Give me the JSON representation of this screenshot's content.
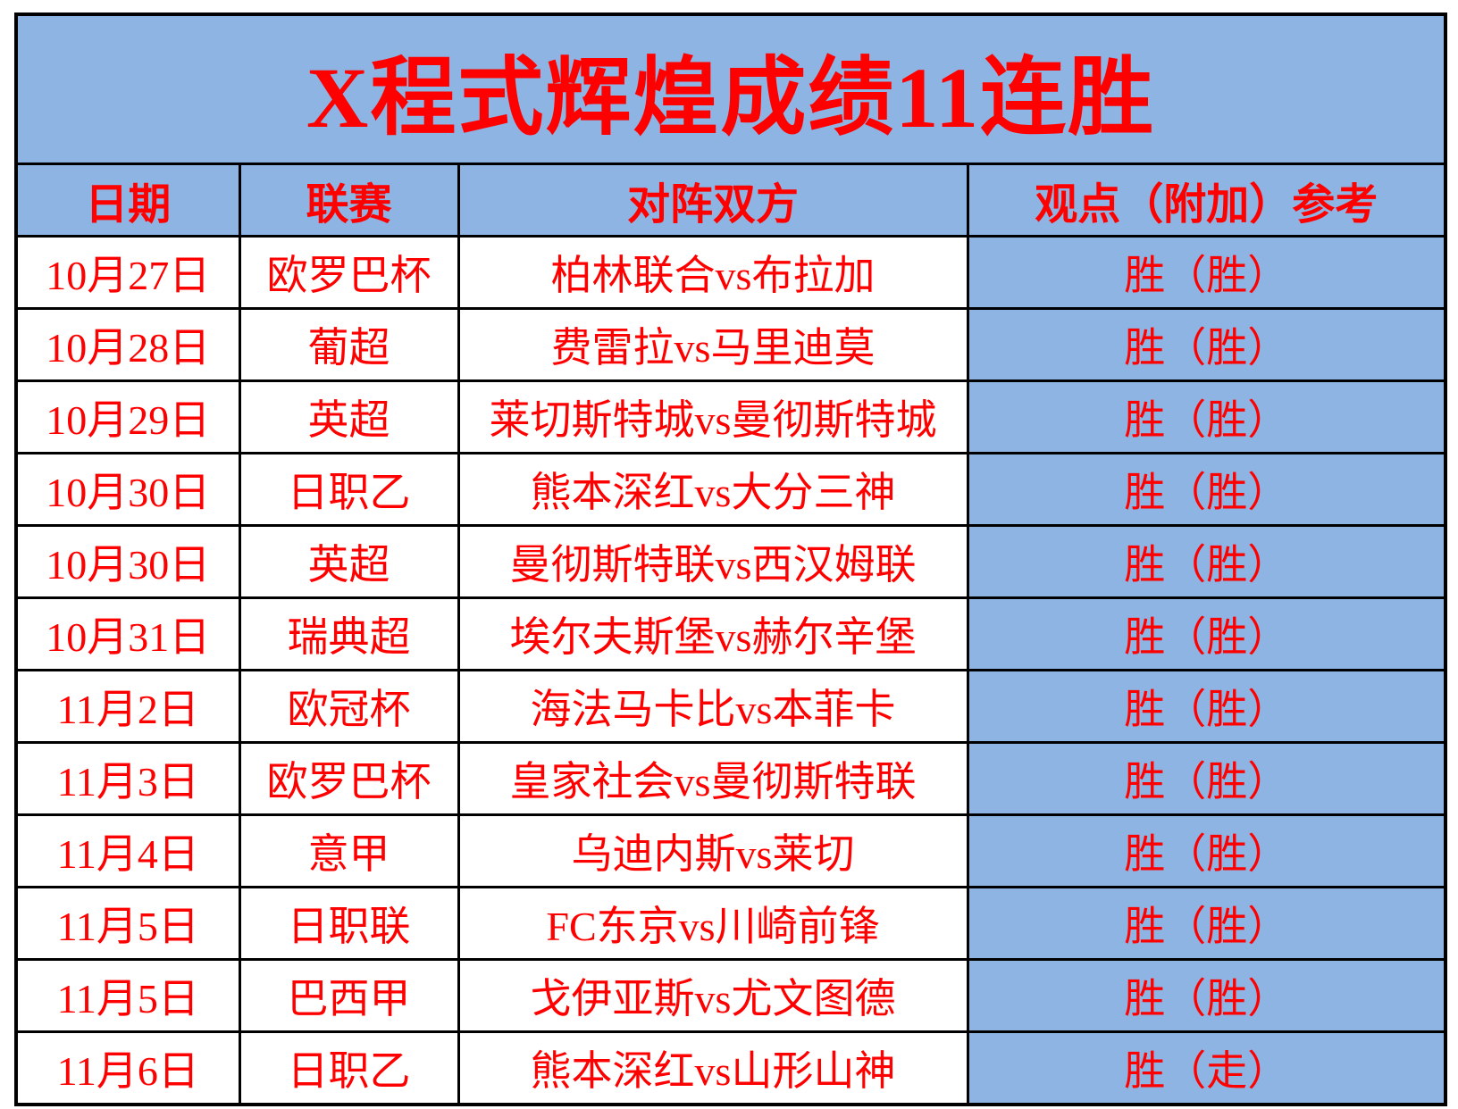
{
  "banner": {
    "title": "X程式辉煌成绩11连胜"
  },
  "table": {
    "headers": {
      "date": "日期",
      "league": "联赛",
      "matchup": "对阵双方",
      "opinion": "观点（附加）参考"
    },
    "rows": [
      {
        "date": "10月27日",
        "league": "欧罗巴杯",
        "match": "柏林联合vs布拉加",
        "result": "胜（胜）"
      },
      {
        "date": "10月28日",
        "league": "葡超",
        "match": "费雷拉vs马里迪莫",
        "result": "胜（胜）"
      },
      {
        "date": "10月29日",
        "league": "英超",
        "match": "莱切斯特城vs曼彻斯特城",
        "result": "胜（胜）"
      },
      {
        "date": "10月30日",
        "league": "日职乙",
        "match": "熊本深红vs大分三神",
        "result": "胜（胜）"
      },
      {
        "date": "10月30日",
        "league": "英超",
        "match": "曼彻斯特联vs西汉姆联",
        "result": "胜（胜）"
      },
      {
        "date": "10月31日",
        "league": "瑞典超",
        "match": "埃尔夫斯堡vs赫尔辛堡",
        "result": "胜（胜）"
      },
      {
        "date": "11月2日",
        "league": "欧冠杯",
        "match": "海法马卡比vs本菲卡",
        "result": "胜（胜）"
      },
      {
        "date": "11月3日",
        "league": "欧罗巴杯",
        "match": "皇家社会vs曼彻斯特联",
        "result": "胜（胜）"
      },
      {
        "date": "11月4日",
        "league": "意甲",
        "match": "乌迪内斯vs莱切",
        "result": "胜（胜）"
      },
      {
        "date": "11月5日",
        "league": "日职联",
        "match": "FC东京vs川崎前锋",
        "result": "胜（胜）"
      },
      {
        "date": "11月5日",
        "league": "巴西甲",
        "match": "戈伊亚斯vs尤文图德",
        "result": "胜（胜）"
      },
      {
        "date": "11月6日",
        "league": "日职乙",
        "match": "熊本深红vs山形山神",
        "result": "胜（走）"
      }
    ]
  },
  "colors": {
    "cell_blue": "#8db4e2",
    "text_red": "#ff0000",
    "border_black": "#000000",
    "background_white": "#ffffff"
  }
}
